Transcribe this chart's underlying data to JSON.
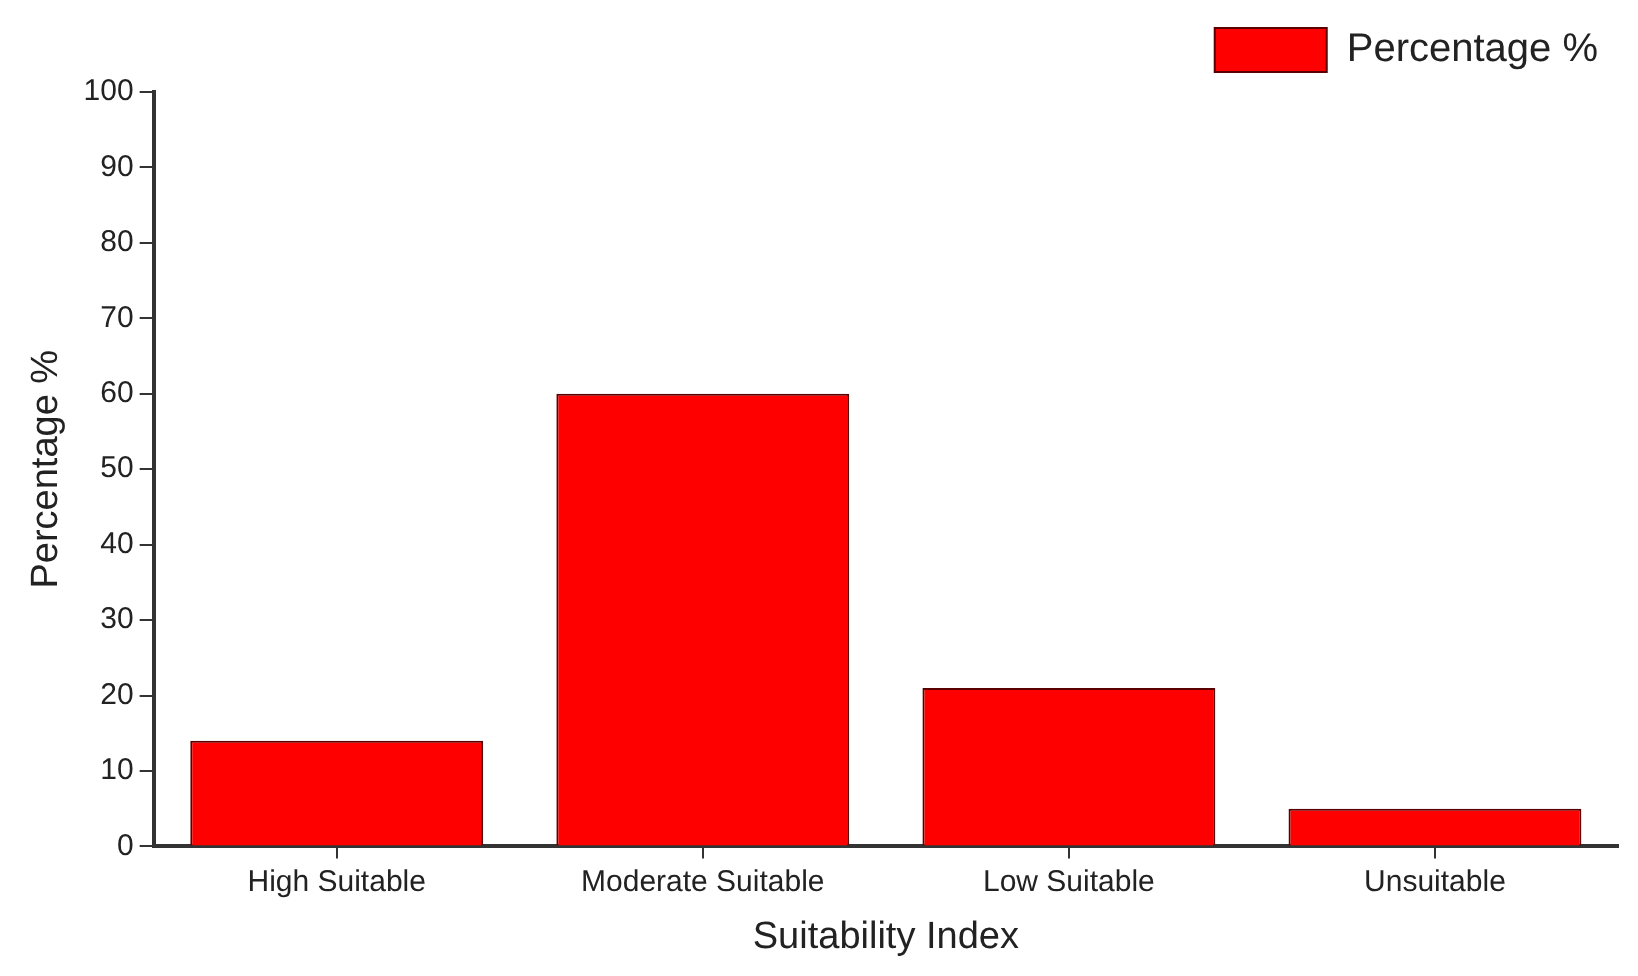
{
  "chart_data": {
    "type": "bar",
    "xlabel": "Suitability Index",
    "ylabel": "Percentage %",
    "categories": [
      "High Suitable",
      "Moderate Suitable",
      "Low Suitable",
      "Unsuitable"
    ],
    "series": [
      {
        "name": "Percentage %",
        "color": "#ff0000",
        "values": [
          14,
          60,
          21,
          5
        ]
      }
    ],
    "ylim": [
      0,
      100
    ],
    "yticks": [
      0,
      10,
      20,
      30,
      40,
      50,
      60,
      70,
      80,
      90,
      100
    ],
    "grid": false,
    "legend": "top right"
  }
}
